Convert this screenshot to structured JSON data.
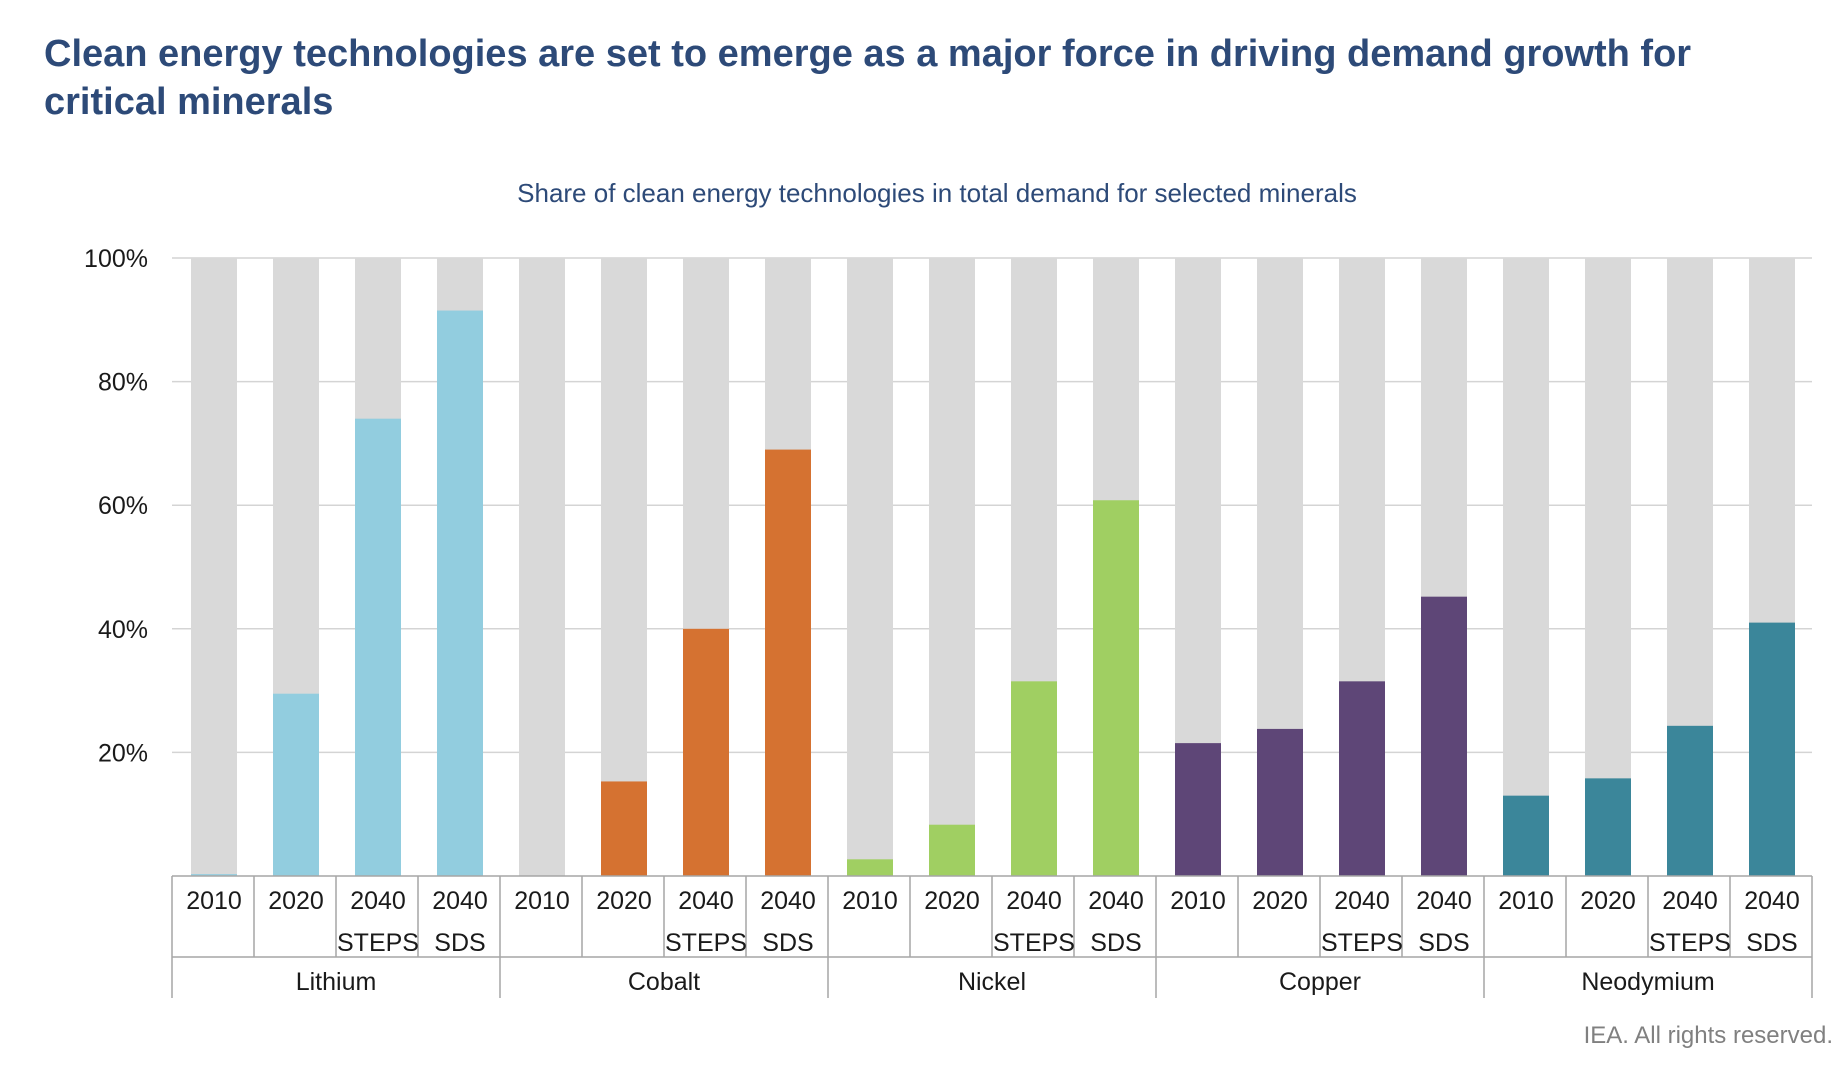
{
  "page": {
    "title": "Clean energy technologies are set to emerge as a major force in driving demand growth for critical minerals",
    "footer": "IEA. All rights reserved."
  },
  "chart_data": {
    "type": "bar",
    "stacked_share": true,
    "title": "Share of clean energy technologies in total demand for selected minerals",
    "ylim": [
      0,
      100
    ],
    "y_ticks": [
      "20%",
      "40%",
      "60%",
      "80%",
      "100%"
    ],
    "y_tick_values": [
      20,
      40,
      60,
      80,
      100
    ],
    "grid": true,
    "background_bar_color": "#d9d9d9",
    "groups": [
      {
        "name": "Lithium",
        "color": "#92cddf",
        "categories": [
          [
            "2010"
          ],
          [
            "2020"
          ],
          [
            "2040",
            "STEPS"
          ],
          [
            "2040",
            "SDS"
          ]
        ],
        "values": [
          0.3,
          29.5,
          74,
          91.5
        ]
      },
      {
        "name": "Cobalt",
        "color": "#d57231",
        "categories": [
          [
            "2010"
          ],
          [
            "2020"
          ],
          [
            "2040",
            "STEPS"
          ],
          [
            "2040",
            "SDS"
          ]
        ],
        "values": [
          0,
          15.3,
          40,
          69
        ]
      },
      {
        "name": "Nickel",
        "color": "#a0cf62",
        "categories": [
          [
            "2010"
          ],
          [
            "2020"
          ],
          [
            "2040",
            "STEPS"
          ],
          [
            "2040",
            "SDS"
          ]
        ],
        "values": [
          2.7,
          8.3,
          31.5,
          60.8
        ]
      },
      {
        "name": "Copper",
        "color": "#5e4677",
        "categories": [
          [
            "2010"
          ],
          [
            "2020"
          ],
          [
            "2040",
            "STEPS"
          ],
          [
            "2040",
            "SDS"
          ]
        ],
        "values": [
          21.5,
          23.8,
          31.5,
          45.2
        ]
      },
      {
        "name": "Neodymium",
        "color": "#3b869a",
        "categories": [
          [
            "2010"
          ],
          [
            "2020"
          ],
          [
            "2040",
            "STEPS"
          ],
          [
            "2040",
            "SDS"
          ]
        ],
        "values": [
          13,
          15.8,
          24.3,
          41
        ]
      }
    ]
  }
}
